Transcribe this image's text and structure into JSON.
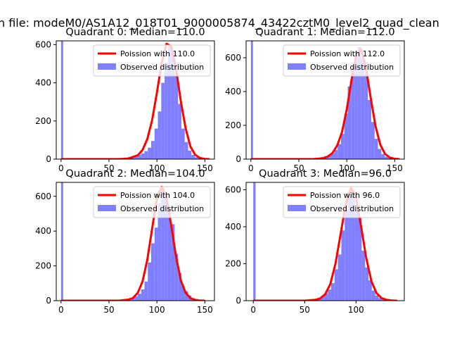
{
  "figure": {
    "suptitle": "n file: modeM0/AS1A12_018T01_9000005874_43422cztM0_level2_quad_clean"
  },
  "colors": {
    "poisson_line": "#ff0000",
    "histogram_fill": "#7f7fff",
    "axes": "#000000"
  },
  "chart_data": [
    {
      "type": "bar",
      "title": "Quadrant 0: Median=110.0",
      "median": 110.0,
      "xlim": [
        -5,
        160
      ],
      "ylim": [
        0,
        620
      ],
      "xticks": [
        0,
        50,
        100,
        150
      ],
      "yticks": [
        0,
        200,
        400,
        600
      ],
      "bin_width": 3.5,
      "legend": {
        "placement": "upper-right",
        "entries": [
          "Poission with 110.0",
          "Observed distribution"
        ]
      },
      "series": [
        {
          "name": "Observed distribution",
          "type": "histogram",
          "x": [
            0,
            66,
            69.5,
            73,
            76.5,
            80,
            83.5,
            87,
            90.5,
            94,
            97.5,
            101,
            104.5,
            108,
            111.5,
            115,
            118.5,
            122,
            125.5,
            129,
            132.5,
            136,
            139.5,
            143,
            146.5,
            150
          ],
          "y": [
            620,
            8,
            10,
            14,
            18,
            23,
            30,
            42,
            60,
            95,
            160,
            250,
            400,
            505,
            600,
            560,
            440,
            290,
            160,
            90,
            45,
            22,
            10,
            5,
            3,
            1
          ]
        },
        {
          "name": "Poission with 110.0",
          "type": "line",
          "x": [
            0,
            60,
            70,
            80,
            85,
            90,
            95,
            100,
            105,
            110,
            115,
            120,
            125,
            130,
            135,
            140,
            145,
            150,
            155
          ],
          "y": [
            0,
            0,
            3,
            20,
            48,
            105,
            205,
            350,
            505,
            605,
            590,
            470,
            300,
            160,
            65,
            22,
            6,
            1,
            0
          ]
        }
      ]
    },
    {
      "type": "bar",
      "title": "Quadrant 1: Median=112.0",
      "median": 112.0,
      "xlim": [
        -5,
        160
      ],
      "ylim": [
        0,
        700
      ],
      "xticks": [
        0,
        50,
        100,
        150
      ],
      "yticks": [
        0,
        200,
        400,
        600
      ],
      "bin_width": 3.5,
      "legend": {
        "placement": "upper-right",
        "entries": [
          "Poission with 112.0",
          "Observed distribution"
        ]
      },
      "series": [
        {
          "name": "Observed distribution",
          "type": "histogram",
          "x": [
            0,
            69.5,
            73,
            76.5,
            80,
            83.5,
            87,
            90.5,
            94,
            97.5,
            101,
            104.5,
            108,
            111.5,
            115,
            118.5,
            122,
            125.5,
            129,
            132.5,
            136,
            139.5,
            143,
            146.5,
            150
          ],
          "y": [
            700,
            8,
            12,
            18,
            25,
            35,
            55,
            90,
            150,
            270,
            430,
            550,
            640,
            665,
            600,
            500,
            350,
            220,
            120,
            60,
            30,
            14,
            6,
            2,
            1
          ]
        },
        {
          "name": "Poission with 112.0",
          "type": "line",
          "x": [
            0,
            65,
            75,
            80,
            85,
            90,
            95,
            100,
            105,
            110,
            115,
            120,
            125,
            130,
            135,
            140,
            145,
            150,
            155
          ],
          "y": [
            0,
            0,
            5,
            14,
            36,
            80,
            160,
            295,
            470,
            615,
            650,
            540,
            360,
            195,
            85,
            30,
            9,
            2,
            0
          ]
        }
      ]
    },
    {
      "type": "bar",
      "title": "Quadrant 2: Median=104.0",
      "median": 104.0,
      "xlim": [
        -5,
        160
      ],
      "ylim": [
        0,
        680
      ],
      "xticks": [
        0,
        50,
        100,
        150
      ],
      "yticks": [
        0,
        200,
        400,
        600
      ],
      "bin_width": 3.5,
      "legend": {
        "placement": "upper-right",
        "entries": [
          "Poission with 104.0",
          "Observed distribution"
        ]
      },
      "series": [
        {
          "name": "Observed distribution",
          "type": "histogram",
          "x": [
            0,
            69.5,
            73,
            76.5,
            80,
            83.5,
            87,
            90.5,
            94,
            97.5,
            101,
            104.5,
            108,
            111.5,
            115,
            118.5,
            122,
            125.5,
            129,
            132.5,
            136,
            139.5,
            143,
            146.5,
            150
          ],
          "y": [
            680,
            10,
            16,
            25,
            40,
            65,
            110,
            220,
            330,
            420,
            560,
            650,
            600,
            540,
            440,
            270,
            160,
            85,
            55,
            30,
            14,
            6,
            3,
            1,
            1
          ]
        },
        {
          "name": "Poission with 104.0",
          "type": "line",
          "x": [
            0,
            60,
            70,
            75,
            80,
            85,
            90,
            95,
            100,
            105,
            110,
            115,
            120,
            125,
            130,
            135,
            140,
            145,
            150
          ],
          "y": [
            0,
            0,
            6,
            15,
            45,
            110,
            235,
            415,
            590,
            655,
            590,
            430,
            250,
            115,
            45,
            14,
            4,
            1,
            0
          ]
        }
      ]
    },
    {
      "type": "bar",
      "title": "Quadrant 3: Median=96.0",
      "median": 96.0,
      "xlim": [
        -7,
        147
      ],
      "ylim": [
        0,
        640
      ],
      "xticks": [
        0,
        50,
        100
      ],
      "yticks": [
        0,
        200,
        400,
        600
      ],
      "bin_width": 3.3,
      "legend": {
        "placement": "upper-right",
        "entries": [
          "Poission with 96.0",
          "Observed distribution"
        ]
      },
      "series": [
        {
          "name": "Observed distribution",
          "type": "histogram",
          "x": [
            0,
            56,
            59.3,
            62.6,
            65.9,
            69.2,
            72.5,
            75.8,
            79.1,
            82.4,
            85.7,
            89,
            92.3,
            95.6,
            98.9,
            102.2,
            105.5,
            108.8,
            112.1,
            115.4,
            118.7,
            122,
            125.3,
            128.6,
            131.9,
            135.2
          ],
          "y": [
            640,
            6,
            10,
            16,
            25,
            40,
            60,
            95,
            170,
            250,
            380,
            490,
            575,
            600,
            490,
            450,
            270,
            180,
            110,
            55,
            28,
            14,
            7,
            3,
            2,
            1
          ]
        },
        {
          "name": "Poission with 96.0",
          "type": "line",
          "x": [
            0,
            50,
            60,
            65,
            70,
            75,
            80,
            85,
            90,
            95,
            100,
            105,
            110,
            115,
            120,
            125,
            130,
            135,
            140
          ],
          "y": [
            0,
            0,
            4,
            12,
            35,
            90,
            200,
            360,
            520,
            610,
            560,
            400,
            230,
            105,
            40,
            13,
            4,
            1,
            0
          ]
        }
      ]
    }
  ]
}
